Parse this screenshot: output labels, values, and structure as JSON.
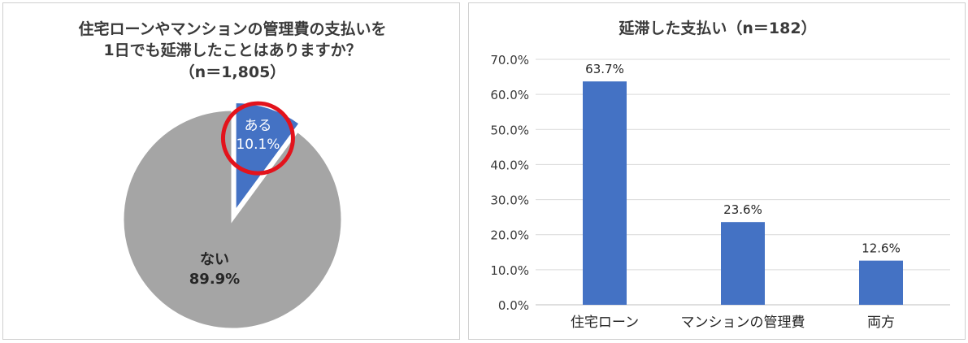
{
  "chart_data": [
    {
      "type": "pie",
      "title_lines": [
        "住宅ローンやマンションの管理費の支払いを",
        "1日でも延滞したことはありますか？",
        "（n＝1,805）"
      ],
      "slices": [
        {
          "label": "ある",
          "value_label": "10.1%",
          "value": 10.1,
          "color": "#4472c4"
        },
        {
          "label": "ない",
          "value_label": "89.9%",
          "value": 89.9,
          "color": "#a5a5a5"
        }
      ],
      "highlight": {
        "slice": "ある",
        "color": "#e3131c"
      }
    },
    {
      "type": "bar",
      "title": "延滞した支払い（n＝182）",
      "categories": [
        "住宅ローン",
        "マンションの管理費",
        "両方"
      ],
      "values": [
        63.7,
        23.6,
        12.6
      ],
      "value_labels": [
        "63.7%",
        "23.6%",
        "12.6%"
      ],
      "yticks": [
        "0.0%",
        "10.0%",
        "20.0%",
        "30.0%",
        "40.0%",
        "50.0%",
        "60.0%",
        "70.0%"
      ],
      "ylim": [
        0,
        70
      ],
      "bar_color": "#4472c4",
      "grid": true
    }
  ]
}
